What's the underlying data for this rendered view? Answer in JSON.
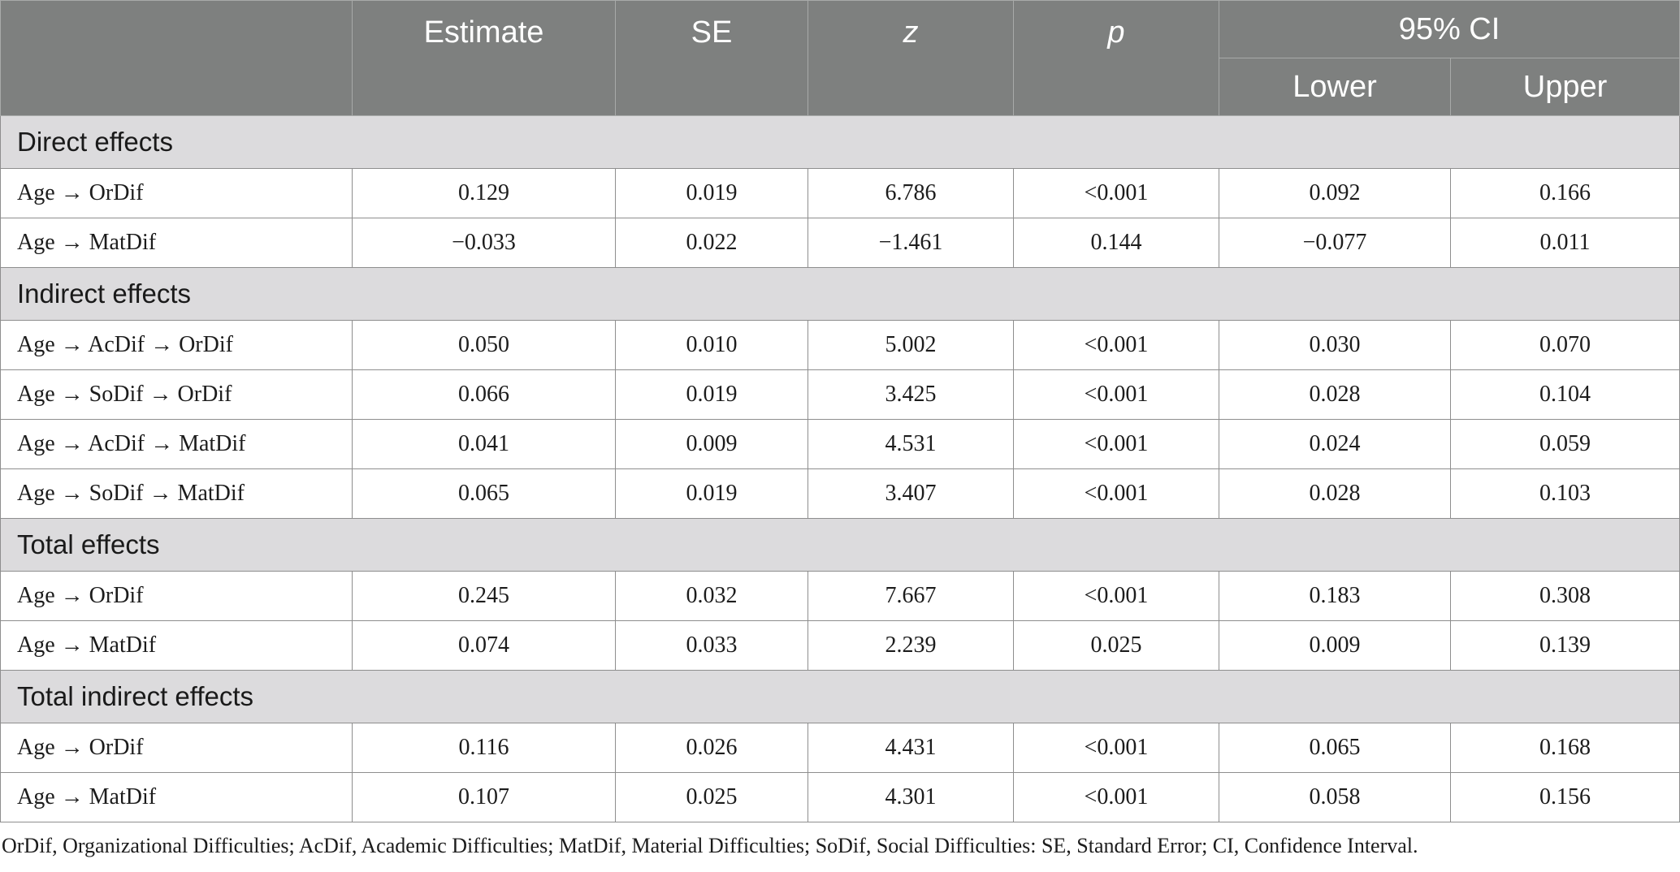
{
  "header": {
    "col_blank": "",
    "estimate": "Estimate",
    "se": "SE",
    "z": "z",
    "p": "p",
    "ci_group": "95% CI",
    "ci_lower": "Lower",
    "ci_upper": "Upper"
  },
  "sections": [
    {
      "title": "Direct effects",
      "rows": [
        {
          "label": "Age → OrDif",
          "estimate": "0.129",
          "se": "0.019",
          "z": "6.786",
          "p": "<0.001",
          "lower": "0.092",
          "upper": "0.166"
        },
        {
          "label": "Age → MatDif",
          "estimate": "−0.033",
          "se": "0.022",
          "z": "−1.461",
          "p": "0.144",
          "lower": "−0.077",
          "upper": "0.011"
        }
      ]
    },
    {
      "title": "Indirect effects",
      "rows": [
        {
          "label": "Age → AcDif → OrDif",
          "estimate": "0.050",
          "se": "0.010",
          "z": "5.002",
          "p": "<0.001",
          "lower": "0.030",
          "upper": "0.070"
        },
        {
          "label": "Age → SoDif → OrDif",
          "estimate": "0.066",
          "se": "0.019",
          "z": "3.425",
          "p": "<0.001",
          "lower": "0.028",
          "upper": "0.104"
        },
        {
          "label": "Age → AcDif → MatDif",
          "estimate": "0.041",
          "se": "0.009",
          "z": "4.531",
          "p": "<0.001",
          "lower": "0.024",
          "upper": "0.059"
        },
        {
          "label": "Age → SoDif → MatDif",
          "estimate": "0.065",
          "se": "0.019",
          "z": "3.407",
          "p": "<0.001",
          "lower": "0.028",
          "upper": "0.103"
        }
      ]
    },
    {
      "title": "Total effects",
      "rows": [
        {
          "label": "Age → OrDif",
          "estimate": "0.245",
          "se": "0.032",
          "z": "7.667",
          "p": "<0.001",
          "lower": "0.183",
          "upper": "0.308"
        },
        {
          "label": "Age → MatDif",
          "estimate": "0.074",
          "se": "0.033",
          "z": "2.239",
          "p": "0.025",
          "lower": "0.009",
          "upper": "0.139"
        }
      ]
    },
    {
      "title": "Total indirect effects",
      "rows": [
        {
          "label": "Age → OrDif",
          "estimate": "0.116",
          "se": "0.026",
          "z": "4.431",
          "p": "<0.001",
          "lower": "0.065",
          "upper": "0.168"
        },
        {
          "label": "Age → MatDif",
          "estimate": "0.107",
          "se": "0.025",
          "z": "4.301",
          "p": "<0.001",
          "lower": "0.058",
          "upper": "0.156"
        }
      ]
    }
  ],
  "footnote": "OrDif, Organizational Difficulties; AcDif, Academic Difficulties; MatDif, Material Difficulties; SoDif, Social Difficulties: SE, Standard Error; CI, Confidence Interval."
}
